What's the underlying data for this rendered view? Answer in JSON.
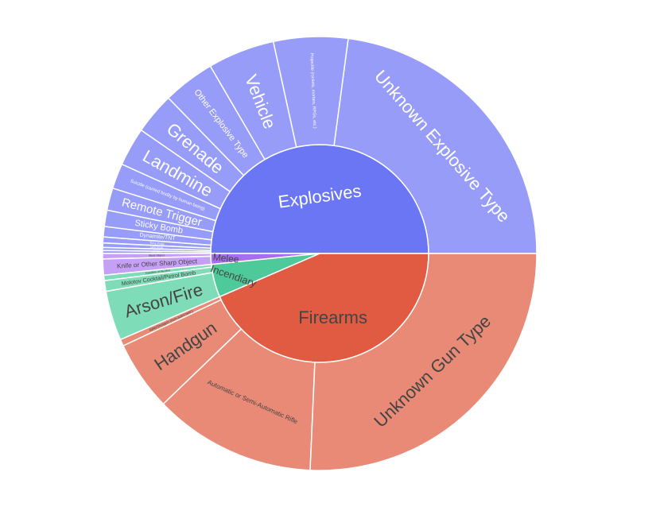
{
  "chart_data": {
    "type": "sunburst",
    "title": "",
    "colors": {
      "Explosives": "#6b76f5",
      "Firearms": "#e05b42",
      "Incendiary": "#4dc99a",
      "Melee": "#a86ef2",
      "Explosives_outer": "#979cf8",
      "Firearms_outer": "#e88a76",
      "Incendiary_outer": "#7fdcb8",
      "Melee_outer": "#c6a0f7"
    },
    "inner": [
      {
        "label": "Explosives",
        "value": 0.5
      },
      {
        "label": "Melee",
        "value": 0.016
      },
      {
        "label": "Incendiary",
        "value": 0.049
      },
      {
        "label": "Firearms",
        "value": 0.435
      }
    ],
    "outer": [
      {
        "label": "Unknown Explosive Type",
        "parent": "Explosives",
        "value": 0.207
      },
      {
        "label": "Projectile (rockets, mortars, RPGs, etc.)",
        "parent": "Explosives",
        "value": 0.05
      },
      {
        "label": "Vehicle",
        "parent": "Explosives",
        "value": 0.045
      },
      {
        "label": "Other Explosive Type",
        "parent": "Explosives",
        "value": 0.035
      },
      {
        "label": "Grenade",
        "parent": "Explosives",
        "value": 0.028
      },
      {
        "label": "Landmine",
        "parent": "Explosives",
        "value": 0.026
      },
      {
        "label": "Suicide (carried bodily by human being)",
        "parent": "Explosives",
        "value": 0.017
      },
      {
        "label": "Remote Trigger",
        "parent": "Explosives",
        "value": 0.015
      },
      {
        "label": "Sticky Bomb",
        "parent": "Explosives",
        "value": 0.011
      },
      {
        "label": "Dynamite/TNT",
        "parent": "Explosives",
        "value": 0.007
      },
      {
        "label": "Time Fuse",
        "parent": "Explosives",
        "value": 0.004
      },
      {
        "label": "Letter Bomb",
        "parent": "Explosives",
        "value": 0.003
      },
      {
        "label": "Pipe Bomb",
        "parent": "Explosives",
        "value": 0.002
      },
      {
        "label": "Other Explosive",
        "parent": "Explosives",
        "value": 0.002
      },
      {
        "label": "Blunt Object",
        "parent": "Melee",
        "value": 0.004
      },
      {
        "label": "Knife or Other Sharp Object",
        "parent": "Melee",
        "value": 0.012
      },
      {
        "label": "Gasoline or Alcohol",
        "parent": "Incendiary",
        "value": 0.004
      },
      {
        "label": "Molotov Cocktail/Petrol Bomb",
        "parent": "Incendiary",
        "value": 0.008
      },
      {
        "label": "Arson/Fire",
        "parent": "Incendiary",
        "value": 0.037
      },
      {
        "label": "Rifle/Shotgun (non-automatic)",
        "parent": "Firearms",
        "value": 0.005
      },
      {
        "label": "Handgun",
        "parent": "Firearms",
        "value": 0.052
      },
      {
        "label": "Automatic or Semi-Automatic Rifle",
        "parent": "Firearms",
        "value": 0.121
      },
      {
        "label": "Unknown Gun Type",
        "parent": "Firearms",
        "value": 0.257
      }
    ]
  }
}
